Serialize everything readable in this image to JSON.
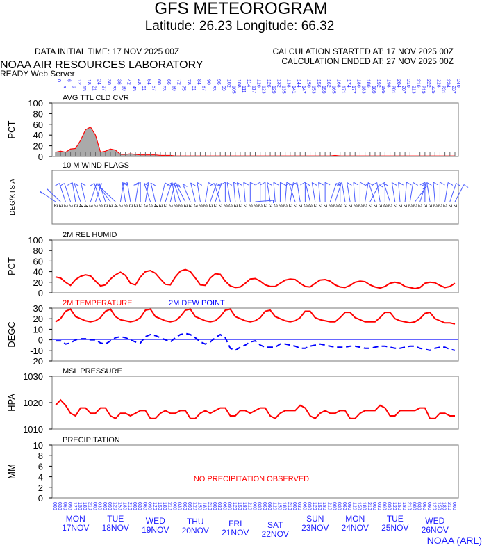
{
  "header": {
    "title": "GFS METEOROGRAM",
    "subtitle": "Latitude: 26.23 Longitude:  66.32",
    "init_time": "DATA INITIAL TIME: 17 NOV 2025 00Z",
    "calc_start": "CALCULATION STARTED AT: 17 NOV 2025 00Z",
    "calc_end": "CALCULATION ENDED AT: 27 NOV 2025 00Z",
    "org": "NOAA AIR RESOURCES LABORATORY",
    "server": "READY Web Server",
    "footer": "NOAA (ARL)"
  },
  "colors": {
    "line": "#ff0000",
    "dew": "#0000ff",
    "axis_labels": "#1a1aff",
    "fill": "#aaaaaa"
  },
  "chart_data": [
    {
      "type": "area",
      "title": "AVG TTL CLD CVR",
      "ylabel": "PCT",
      "ylim": [
        0,
        100
      ],
      "yticks": [
        "0",
        "20",
        "40",
        "60",
        "80",
        "100"
      ],
      "values": [
        8,
        10,
        8,
        14,
        15,
        30,
        50,
        55,
        40,
        8,
        10,
        14,
        12,
        4,
        4,
        5,
        4,
        3,
        3,
        3,
        3,
        2,
        2,
        2,
        1,
        1,
        1,
        1,
        1,
        1,
        1,
        1,
        1,
        1,
        1,
        1,
        1,
        1,
        1,
        1,
        1,
        1,
        1,
        1,
        1,
        1,
        1,
        1,
        1,
        1,
        1,
        1,
        1,
        1,
        1,
        1,
        2,
        1,
        1,
        1,
        1,
        1,
        1,
        1,
        1,
        1,
        1,
        1,
        1,
        1,
        1,
        1,
        1,
        1,
        1,
        1,
        1,
        1,
        1,
        1,
        1
      ]
    },
    {
      "type": "wind",
      "title": "10 M  WIND FLAGS",
      "ylabel": "DEG/KTS  A",
      "dir": [
        300,
        310,
        200,
        200,
        190,
        340,
        345,
        20,
        160,
        200,
        200,
        320,
        310,
        10,
        350,
        190,
        170,
        180,
        170,
        340,
        345,
        15,
        20,
        15,
        190,
        200,
        330,
        335,
        345,
        350,
        10,
        20,
        160,
        200,
        180,
        350,
        355,
        350,
        355,
        0,
        90,
        180,
        180,
        350,
        355,
        0,
        5,
        10,
        200,
        190,
        180,
        345,
        350,
        355,
        0,
        20,
        160,
        180,
        190,
        350,
        355,
        0,
        10,
        30,
        200,
        190,
        180,
        340,
        350,
        355,
        5,
        10,
        140,
        160,
        180,
        350,
        355,
        0,
        10,
        20,
        30
      ],
      "speed": [
        2,
        3,
        2,
        2,
        3,
        4,
        4,
        3,
        2,
        2,
        3,
        3,
        4,
        2,
        2,
        3,
        2,
        2,
        3,
        3,
        4,
        3,
        2,
        2,
        2,
        2,
        3,
        3,
        3,
        2,
        2,
        2,
        2,
        2,
        2,
        3,
        3,
        2,
        2,
        2,
        2,
        2,
        2,
        3,
        3,
        2,
        2,
        2,
        2,
        2,
        3,
        3,
        2,
        2,
        2,
        2,
        2,
        3,
        3,
        2,
        2,
        2,
        2,
        2,
        2,
        3,
        3,
        2,
        2,
        2,
        2,
        2,
        2,
        2,
        3,
        3,
        2,
        2,
        2,
        2,
        2
      ]
    },
    {
      "type": "line",
      "title": "2M REL HUMID",
      "ylabel": "PCT",
      "ylim": [
        0,
        100
      ],
      "yticks": [
        "0",
        "20",
        "40",
        "60",
        "80",
        "100"
      ],
      "values": [
        30,
        28,
        20,
        14,
        25,
        31,
        34,
        32,
        22,
        13,
        15,
        26,
        34,
        39,
        33,
        18,
        15,
        30,
        40,
        42,
        37,
        26,
        16,
        15,
        30,
        41,
        44,
        40,
        28,
        15,
        14,
        28,
        36,
        35,
        22,
        13,
        10,
        11,
        18,
        26,
        27,
        22,
        15,
        12,
        12,
        18,
        24,
        26,
        25,
        18,
        12,
        11,
        18,
        24,
        25,
        22,
        15,
        11,
        10,
        14,
        20,
        22,
        21,
        15,
        11,
        9,
        12,
        18,
        20,
        18,
        12,
        10,
        8,
        10,
        18,
        20,
        19,
        14,
        10,
        12,
        18
      ]
    },
    {
      "type": "line",
      "title": "2M TEMPERATURE",
      "title2": "2M   DEW POINT",
      "ylabel": "DEGC",
      "ylim": [
        -20,
        30
      ],
      "yticks": [
        "-20",
        "-10",
        "0",
        "10",
        "20",
        "30"
      ],
      "series": [
        {
          "name": "2M TEMPERATURE",
          "values": [
            17,
            20,
            27,
            29,
            22,
            20,
            18,
            17,
            18,
            21,
            27,
            29,
            22,
            19,
            18,
            17,
            18,
            21,
            28,
            29,
            22,
            20,
            18,
            17,
            18,
            22,
            28,
            29,
            22,
            20,
            18,
            17,
            18,
            22,
            28,
            29,
            22,
            20,
            18,
            17,
            18,
            21,
            27,
            28,
            22,
            20,
            18,
            17,
            18,
            21,
            27,
            27,
            21,
            19,
            18,
            17,
            17,
            21,
            26,
            26,
            21,
            19,
            17,
            17,
            17,
            21,
            26,
            26,
            20,
            18,
            17,
            16,
            17,
            20,
            25,
            26,
            20,
            18,
            16,
            16,
            15
          ]
        },
        {
          "name": "2M   DEW POINT",
          "values": [
            -1,
            -1,
            -4,
            -3,
            0,
            1,
            1,
            0,
            0,
            -3,
            -4,
            -1,
            2,
            3,
            2,
            0,
            -2,
            -3,
            3,
            5,
            4,
            2,
            0,
            -2,
            2,
            5,
            6,
            5,
            2,
            -2,
            -4,
            -2,
            2,
            5,
            2,
            -8,
            -10,
            -7,
            -5,
            -2,
            -1,
            -5,
            -7,
            -7,
            -7,
            -4,
            -4,
            -5,
            -6,
            -8,
            -8,
            -6,
            -5,
            -4,
            -5,
            -6,
            -7,
            -7,
            -7,
            -6,
            -6,
            -7,
            -8,
            -8,
            -7,
            -6,
            -6,
            -7,
            -8,
            -8,
            -7,
            -6,
            -6,
            -8,
            -9,
            -10,
            -8,
            -7,
            -7,
            -9,
            -10
          ]
        }
      ]
    },
    {
      "type": "line",
      "title": "MSL PRESSURE",
      "ylabel": "HPA",
      "ylim": [
        1010,
        1030
      ],
      "yticks": [
        "1010",
        "1020",
        "1030"
      ],
      "values": [
        1019,
        1021,
        1019,
        1016,
        1015,
        1018,
        1018,
        1016,
        1016,
        1018,
        1018,
        1015,
        1014,
        1016,
        1016,
        1015,
        1016,
        1017,
        1017,
        1014,
        1014,
        1016,
        1017,
        1016,
        1016,
        1017,
        1017,
        1014,
        1014,
        1016,
        1017,
        1016,
        1017,
        1018,
        1018,
        1015,
        1015,
        1017,
        1017,
        1016,
        1017,
        1018,
        1018,
        1015,
        1014,
        1016,
        1017,
        1017,
        1017,
        1019,
        1018,
        1015,
        1014,
        1016,
        1017,
        1016,
        1016,
        1017,
        1017,
        1014,
        1014,
        1016,
        1017,
        1017,
        1017,
        1019,
        1018,
        1015,
        1015,
        1017,
        1017,
        1017,
        1017,
        1018,
        1018,
        1014,
        1014,
        1016,
        1016,
        1015,
        1015
      ]
    },
    {
      "type": "line",
      "title": "PRECIPITATION",
      "ylabel": "MM",
      "ylim": [
        0,
        10
      ],
      "yticks": [
        "0",
        "2",
        "4",
        "6",
        "8",
        "10"
      ],
      "annotation": "NO PRECIPITATION OBSERVED"
    }
  ],
  "days": [
    {
      "dow": "MON",
      "date": "17NOV"
    },
    {
      "dow": "TUE",
      "date": "18NOV"
    },
    {
      "dow": "WED",
      "date": "19NOV"
    },
    {
      "dow": "THU",
      "date": "20NOV"
    },
    {
      "dow": "FRI",
      "date": "21NOV"
    },
    {
      "dow": "SAT",
      "date": "22NOV"
    },
    {
      "dow": "SUN",
      "date": "23NOV"
    },
    {
      "dow": "MON",
      "date": "24NOV"
    },
    {
      "dow": "TUE",
      "date": "25NOV"
    },
    {
      "dow": "WED",
      "date": "26NOV"
    }
  ],
  "forecast_hours_step": 3,
  "forecast_hours_max": 240
}
